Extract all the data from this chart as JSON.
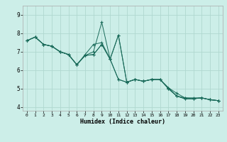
{
  "title": "",
  "xlabel": "Humidex (Indice chaleur)",
  "bg_color": "#cceee8",
  "plot_bg_color": "#cceee8",
  "line_color": "#1a6b5a",
  "grid_color": "#b0d8d0",
  "xlim": [
    -0.5,
    23.5
  ],
  "ylim": [
    3.8,
    9.5
  ],
  "yticks": [
    4,
    5,
    6,
    7,
    8,
    9
  ],
  "xticks": [
    0,
    1,
    2,
    3,
    4,
    5,
    6,
    7,
    8,
    9,
    10,
    11,
    12,
    13,
    14,
    15,
    16,
    17,
    18,
    19,
    20,
    21,
    22,
    23
  ],
  "lines": [
    [
      7.6,
      7.8,
      7.4,
      7.3,
      7.0,
      6.85,
      6.3,
      6.85,
      7.4,
      7.5,
      6.6,
      7.9,
      5.35,
      5.5,
      5.4,
      5.5,
      5.5,
      5.05,
      4.6,
      4.5,
      4.45,
      4.5,
      4.4,
      4.35
    ],
    [
      7.6,
      7.8,
      7.4,
      7.3,
      7.0,
      6.85,
      6.3,
      6.8,
      7.0,
      8.6,
      6.6,
      5.5,
      5.35,
      5.5,
      5.4,
      5.5,
      5.5,
      5.05,
      4.75,
      4.5,
      4.5,
      4.5,
      4.4,
      4.35
    ],
    [
      7.6,
      7.8,
      7.4,
      7.3,
      7.0,
      6.85,
      6.3,
      6.8,
      6.85,
      7.4,
      6.6,
      7.9,
      5.35,
      5.5,
      5.4,
      5.5,
      5.5,
      5.0,
      4.6,
      4.45,
      4.45,
      4.5,
      4.4,
      4.35
    ],
    [
      7.6,
      7.8,
      7.4,
      7.3,
      7.0,
      6.85,
      6.3,
      6.8,
      6.85,
      7.4,
      6.6,
      5.5,
      5.35,
      5.5,
      5.4,
      5.5,
      5.5,
      5.0,
      4.6,
      4.45,
      4.45,
      4.5,
      4.4,
      4.35
    ]
  ]
}
